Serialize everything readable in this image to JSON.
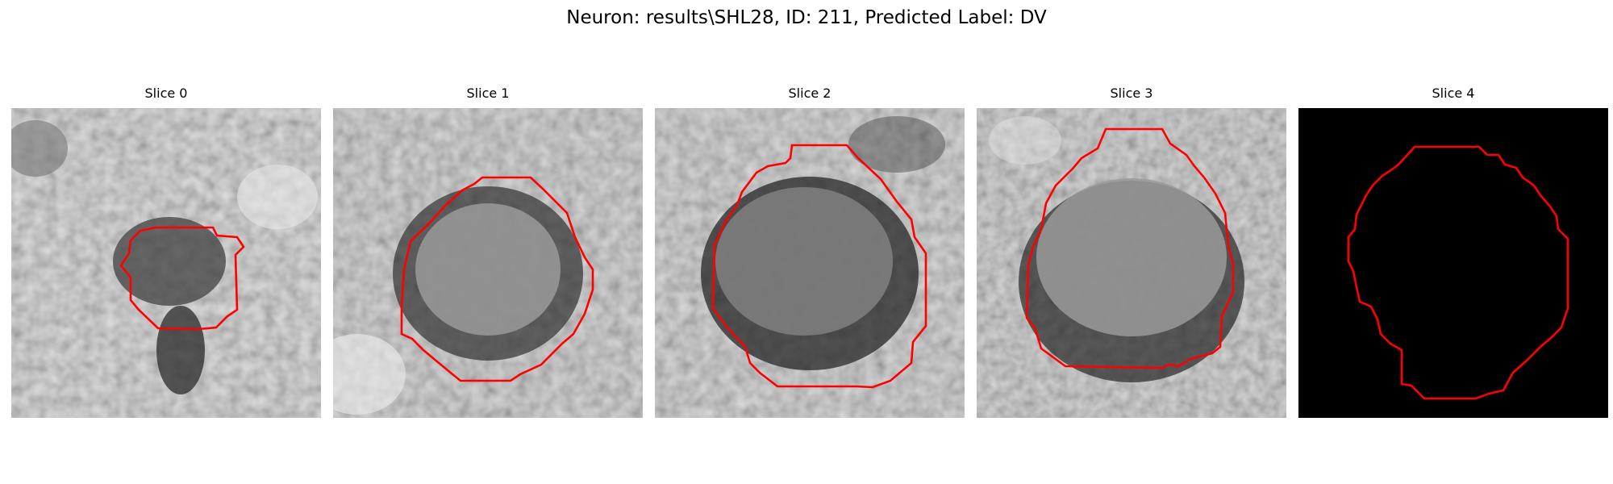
{
  "figure": {
    "title": "Neuron: results\\SHL28, ID: 211, Predicted Label: DV"
  },
  "colors": {
    "background": "#ffffff",
    "contour": "#ff0000",
    "empty_slice": "#000000"
  },
  "panels": [
    {
      "title": "Slice 0",
      "image": "grayscale EM crop",
      "empty": false
    },
    {
      "title": "Slice 1",
      "image": "grayscale EM crop",
      "empty": false
    },
    {
      "title": "Slice 2",
      "image": "grayscale EM crop",
      "empty": false
    },
    {
      "title": "Slice 3",
      "image": "grayscale EM crop",
      "empty": false
    },
    {
      "title": "Slice 4",
      "image": "black",
      "empty": true
    }
  ]
}
